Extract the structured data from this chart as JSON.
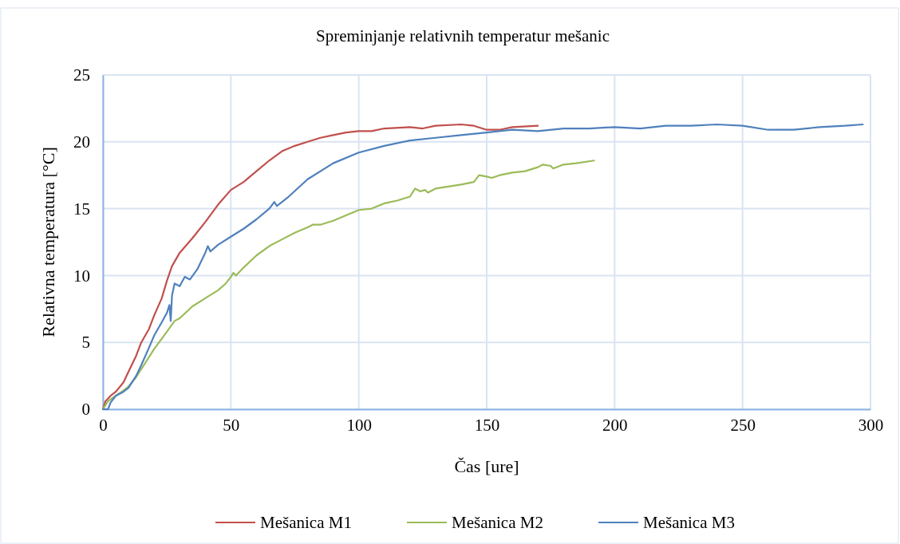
{
  "chart_data": {
    "type": "line",
    "title": "Spreminjanje relativnih temperatur mešanic",
    "xlabel": "Čas [ure]",
    "ylabel": "Relativna temperatura [°C]",
    "xlim": [
      0,
      300
    ],
    "xticks": [
      0,
      50,
      100,
      150,
      200,
      250,
      300
    ],
    "ylim": [
      0,
      25
    ],
    "yticks": [
      0,
      5,
      10,
      15,
      20,
      25
    ],
    "grid": true,
    "legend": "bottom",
    "marker": "none",
    "line_style": "solid",
    "series": [
      {
        "name": "Mešanica M1",
        "color": "#c0504d",
        "x": [
          0,
          1,
          3,
          5,
          8,
          10,
          13,
          15,
          18,
          20,
          23,
          25,
          27,
          30,
          35,
          40,
          45,
          50,
          55,
          60,
          65,
          70,
          75,
          80,
          85,
          90,
          95,
          100,
          105,
          110,
          120,
          125,
          130,
          140,
          145,
          150,
          155,
          160,
          170
        ],
        "values": [
          0,
          0.6,
          1.0,
          1.3,
          2.0,
          2.8,
          4.0,
          5.0,
          6.0,
          7.0,
          8.3,
          9.6,
          10.7,
          11.7,
          12.8,
          14.0,
          15.3,
          16.4,
          17.0,
          17.8,
          18.6,
          19.3,
          19.7,
          20.0,
          20.3,
          20.5,
          20.7,
          20.8,
          20.8,
          21.0,
          21.1,
          21.0,
          21.2,
          21.3,
          21.2,
          20.9,
          20.9,
          21.1,
          21.2
        ]
      },
      {
        "name": "Mešanica M2",
        "color": "#9bbb59",
        "x": [
          0,
          2,
          5,
          8,
          10,
          13,
          15,
          20,
          25,
          28,
          30,
          35,
          40,
          45,
          48,
          50,
          51,
          52,
          55,
          60,
          65,
          70,
          75,
          80,
          82,
          85,
          90,
          95,
          100,
          105,
          110,
          115,
          120,
          122,
          124,
          126,
          127,
          130,
          140,
          145,
          147,
          150,
          152,
          155,
          160,
          165,
          170,
          172,
          175,
          176,
          180,
          185,
          192
        ],
        "values": [
          0,
          0.6,
          1.0,
          1.4,
          1.7,
          2.4,
          3.0,
          4.5,
          5.8,
          6.6,
          6.8,
          7.7,
          8.3,
          8.9,
          9.4,
          9.9,
          10.2,
          10.0,
          10.6,
          11.5,
          12.2,
          12.7,
          13.2,
          13.6,
          13.8,
          13.8,
          14.1,
          14.5,
          14.9,
          15.0,
          15.4,
          15.6,
          15.9,
          16.5,
          16.3,
          16.4,
          16.2,
          16.5,
          16.8,
          17.0,
          17.5,
          17.4,
          17.3,
          17.5,
          17.7,
          17.8,
          18.1,
          18.3,
          18.2,
          18.0,
          18.3,
          18.4,
          18.6
        ]
      },
      {
        "name": "Mešanica M3",
        "color": "#4f81bd",
        "x": [
          0,
          2,
          3,
          5,
          8,
          10,
          13,
          15,
          18,
          20,
          23,
          25,
          26,
          26.5,
          27,
          28,
          30,
          32,
          34,
          37,
          40,
          41,
          42,
          45,
          50,
          55,
          60,
          65,
          67,
          68,
          72,
          80,
          90,
          100,
          110,
          120,
          130,
          140,
          150,
          160,
          170,
          180,
          190,
          200,
          210,
          220,
          230,
          240,
          250,
          260,
          265,
          270,
          280,
          290,
          297
        ],
        "values": [
          0,
          0,
          0.5,
          1.0,
          1.3,
          1.6,
          2.5,
          3.3,
          4.6,
          5.5,
          6.5,
          7.2,
          7.8,
          6.6,
          8.5,
          9.4,
          9.2,
          9.9,
          9.7,
          10.5,
          11.7,
          12.2,
          11.8,
          12.3,
          12.9,
          13.5,
          14.2,
          15.0,
          15.5,
          15.2,
          15.8,
          17.2,
          18.4,
          19.2,
          19.7,
          20.1,
          20.3,
          20.5,
          20.7,
          20.9,
          20.8,
          21.0,
          21.0,
          21.1,
          21.0,
          21.2,
          21.2,
          21.3,
          21.2,
          20.9,
          20.9,
          20.9,
          21.1,
          21.2,
          21.3
        ]
      }
    ]
  }
}
